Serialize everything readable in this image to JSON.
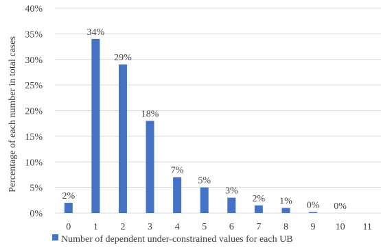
{
  "chart_data": {
    "type": "bar",
    "categories": [
      "0",
      "1",
      "2",
      "3",
      "4",
      "5",
      "6",
      "7",
      "8",
      "9",
      "10",
      "11"
    ],
    "series": [
      {
        "name": "Number of dependent under-constrained values for each UB",
        "values": [
          2,
          34,
          29,
          18,
          7,
          5,
          3,
          1.5,
          1,
          0.2,
          0,
          null
        ],
        "labels": [
          "2%",
          "34%",
          "29%",
          "18%",
          "7%",
          "5%",
          "3%",
          "2%",
          "1%",
          "0%",
          "0%",
          ""
        ],
        "color": "#4472c4"
      }
    ],
    "ylabel": "Percentage of each number in total cases",
    "xlabel": "",
    "ylim": [
      0,
      40
    ],
    "yticks": [
      "0%",
      "5%",
      "10%",
      "15%",
      "20%",
      "25%",
      "30%",
      "35%",
      "40%"
    ],
    "grid": true,
    "legend": "bottom"
  }
}
